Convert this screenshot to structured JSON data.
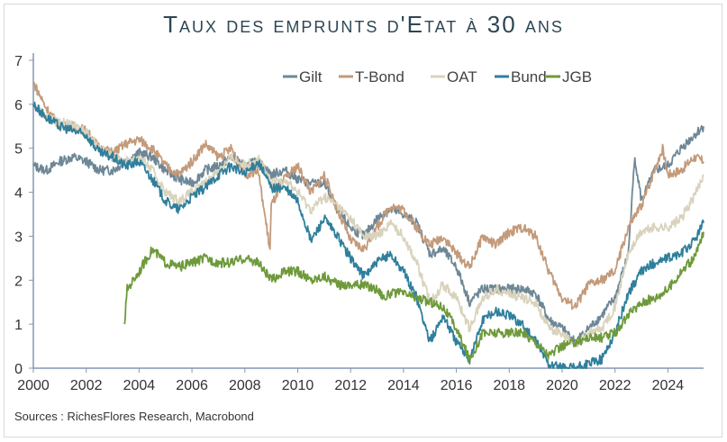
{
  "chart_data": {
    "type": "line",
    "title": "Taux des emprunts d'Etat à 30 ans",
    "source": "Sources : RichesFlores Research, Macrobond",
    "xlabel": "",
    "ylabel": "",
    "xlim": [
      2000,
      2025.35
    ],
    "ylim": [
      0,
      7
    ],
    "xticks": [
      "2000",
      "2002",
      "2004",
      "2006",
      "2008",
      "2010",
      "2012",
      "2014",
      "2016",
      "2018",
      "2020",
      "2022",
      "2024"
    ],
    "yticks": [
      "0",
      "1",
      "2",
      "3",
      "4",
      "5",
      "6",
      "7"
    ],
    "legend_position": "top-right",
    "series": [
      {
        "name": "Gilt",
        "color": "#6e8796",
        "x": [
          2000,
          2000.5,
          2001,
          2001.5,
          2002,
          2002.5,
          2003,
          2003.5,
          2004,
          2004.5,
          2005,
          2005.5,
          2006,
          2006.5,
          2007,
          2007.5,
          2008,
          2008.5,
          2009,
          2009.5,
          2010,
          2010.5,
          2011,
          2011.5,
          2012,
          2012.5,
          2013,
          2013.5,
          2014,
          2014.5,
          2015,
          2015.5,
          2016,
          2016.5,
          2017,
          2017.5,
          2018,
          2018.5,
          2019,
          2019.5,
          2020,
          2020.5,
          2021,
          2021.5,
          2022,
          2022.5,
          2022.75,
          2023,
          2023.5,
          2024,
          2024.5,
          2025,
          2025.35
        ],
        "y": [
          4.6,
          4.5,
          4.7,
          4.8,
          4.7,
          4.5,
          4.5,
          4.7,
          4.9,
          4.8,
          4.5,
          4.3,
          4.2,
          4.5,
          4.6,
          4.8,
          4.6,
          4.7,
          4.4,
          4.5,
          4.3,
          4.2,
          4.2,
          3.6,
          3.2,
          3.0,
          3.4,
          3.6,
          3.5,
          3.3,
          2.6,
          2.7,
          2.3,
          1.5,
          1.8,
          1.8,
          1.8,
          1.8,
          1.7,
          1.1,
          0.9,
          0.6,
          0.9,
          1.2,
          1.6,
          2.6,
          4.8,
          3.8,
          4.5,
          4.6,
          5.0,
          5.3,
          5.5
        ]
      },
      {
        "name": "T-Bond",
        "color": "#c39a7a",
        "x": [
          2000,
          2000.5,
          2001,
          2001.5,
          2002,
          2002.5,
          2003,
          2003.5,
          2004,
          2004.5,
          2005,
          2005.5,
          2006,
          2006.5,
          2007,
          2007.5,
          2008,
          2008.5,
          2008.95,
          2009,
          2009.5,
          2010,
          2010.5,
          2011,
          2011.5,
          2012,
          2012.5,
          2013,
          2013.5,
          2014,
          2014.5,
          2015,
          2015.5,
          2016,
          2016.5,
          2017,
          2017.5,
          2018,
          2018.5,
          2019,
          2019.5,
          2020,
          2020.5,
          2021,
          2021.5,
          2022,
          2022.5,
          2023,
          2023.8,
          2024,
          2024.5,
          2025,
          2025.35
        ],
        "y": [
          6.5,
          5.9,
          5.5,
          5.5,
          5.4,
          5.0,
          4.9,
          5.1,
          5.2,
          5.0,
          4.6,
          4.4,
          4.7,
          5.1,
          4.8,
          5.0,
          4.4,
          4.5,
          2.7,
          3.7,
          4.3,
          4.6,
          4.0,
          4.4,
          3.6,
          2.9,
          2.7,
          3.2,
          3.7,
          3.6,
          3.2,
          2.8,
          3.0,
          2.6,
          2.3,
          3.0,
          2.8,
          3.1,
          3.2,
          3.0,
          2.2,
          1.6,
          1.4,
          1.9,
          2.0,
          2.2,
          3.2,
          3.7,
          5.0,
          4.4,
          4.5,
          4.8,
          4.7
        ]
      },
      {
        "name": "OAT",
        "color": "#d9d3bd",
        "x": [
          2000,
          2000.5,
          2001,
          2001.5,
          2002,
          2002.5,
          2003,
          2003.5,
          2004,
          2004.5,
          2005,
          2005.5,
          2006,
          2006.5,
          2007,
          2007.5,
          2008,
          2008.5,
          2009,
          2009.5,
          2010,
          2010.5,
          2011,
          2011.5,
          2012,
          2012.5,
          2013,
          2013.5,
          2014,
          2014.5,
          2015,
          2015.5,
          2016,
          2016.5,
          2017,
          2017.5,
          2018,
          2018.5,
          2019,
          2019.5,
          2020,
          2020.5,
          2021,
          2021.5,
          2022,
          2022.5,
          2023,
          2023.5,
          2024,
          2024.5,
          2025,
          2025.35
        ],
        "y": [
          6.0,
          5.7,
          5.6,
          5.5,
          5.4,
          5.0,
          4.8,
          4.7,
          4.8,
          4.5,
          4.0,
          3.8,
          4.0,
          4.2,
          4.5,
          4.8,
          4.6,
          4.8,
          4.2,
          4.3,
          4.0,
          3.6,
          3.9,
          3.7,
          3.4,
          3.0,
          3.0,
          3.3,
          3.0,
          2.4,
          1.5,
          1.9,
          1.6,
          0.9,
          1.6,
          1.8,
          1.7,
          1.6,
          1.5,
          0.9,
          0.8,
          0.5,
          0.8,
          0.9,
          1.4,
          2.6,
          3.1,
          3.2,
          3.2,
          3.4,
          3.9,
          4.4
        ]
      },
      {
        "name": "Bund",
        "color": "#2f7f9c",
        "x": [
          2000,
          2000.5,
          2001,
          2001.5,
          2002,
          2002.5,
          2003,
          2003.5,
          2004,
          2004.5,
          2005,
          2005.5,
          2006,
          2006.5,
          2007,
          2007.5,
          2008,
          2008.5,
          2009,
          2009.5,
          2010,
          2010.5,
          2011,
          2011.5,
          2012,
          2012.5,
          2013,
          2013.5,
          2014,
          2014.5,
          2015,
          2015.5,
          2016,
          2016.5,
          2017,
          2017.5,
          2018,
          2018.5,
          2019,
          2019.5,
          2020,
          2020.5,
          2021,
          2021.5,
          2022,
          2022.5,
          2023,
          2023.5,
          2024,
          2024.5,
          2025,
          2025.35
        ],
        "y": [
          6.0,
          5.7,
          5.5,
          5.4,
          5.3,
          4.9,
          4.8,
          4.6,
          4.7,
          4.3,
          3.8,
          3.6,
          3.9,
          4.1,
          4.4,
          4.6,
          4.4,
          4.7,
          4.1,
          4.1,
          3.8,
          2.9,
          3.4,
          3.0,
          2.5,
          2.1,
          2.4,
          2.6,
          2.2,
          1.6,
          0.6,
          1.2,
          0.6,
          0.2,
          1.1,
          1.3,
          1.2,
          1.0,
          0.6,
          0.1,
          0.0,
          0.0,
          0.1,
          0.2,
          0.8,
          1.7,
          2.2,
          2.4,
          2.5,
          2.6,
          2.9,
          3.3
        ]
      },
      {
        "name": "JGB",
        "color": "#6e9a3b",
        "x": [
          2003.45,
          2003.55,
          2004,
          2004.5,
          2005,
          2005.5,
          2006,
          2006.5,
          2007,
          2007.5,
          2008,
          2008.5,
          2009,
          2009.5,
          2010,
          2010.5,
          2011,
          2011.5,
          2012,
          2012.5,
          2013,
          2013.3,
          2013.5,
          2014,
          2014.5,
          2015,
          2015.5,
          2016,
          2016.5,
          2017,
          2017.5,
          2018,
          2018.5,
          2019,
          2019.5,
          2020,
          2020.5,
          2021,
          2021.5,
          2022,
          2022.5,
          2023,
          2023.5,
          2024,
          2024.5,
          2025,
          2025.35
        ],
        "y": [
          1.0,
          1.8,
          2.2,
          2.7,
          2.4,
          2.3,
          2.4,
          2.5,
          2.4,
          2.4,
          2.5,
          2.4,
          2.0,
          2.2,
          2.2,
          2.0,
          2.1,
          1.9,
          1.9,
          1.9,
          1.8,
          1.6,
          1.7,
          1.7,
          1.6,
          1.5,
          1.4,
          0.9,
          0.2,
          0.8,
          0.8,
          0.8,
          0.8,
          0.6,
          0.3,
          0.5,
          0.6,
          0.7,
          0.7,
          0.8,
          1.2,
          1.5,
          1.6,
          1.8,
          2.2,
          2.5,
          3.1
        ]
      }
    ]
  }
}
